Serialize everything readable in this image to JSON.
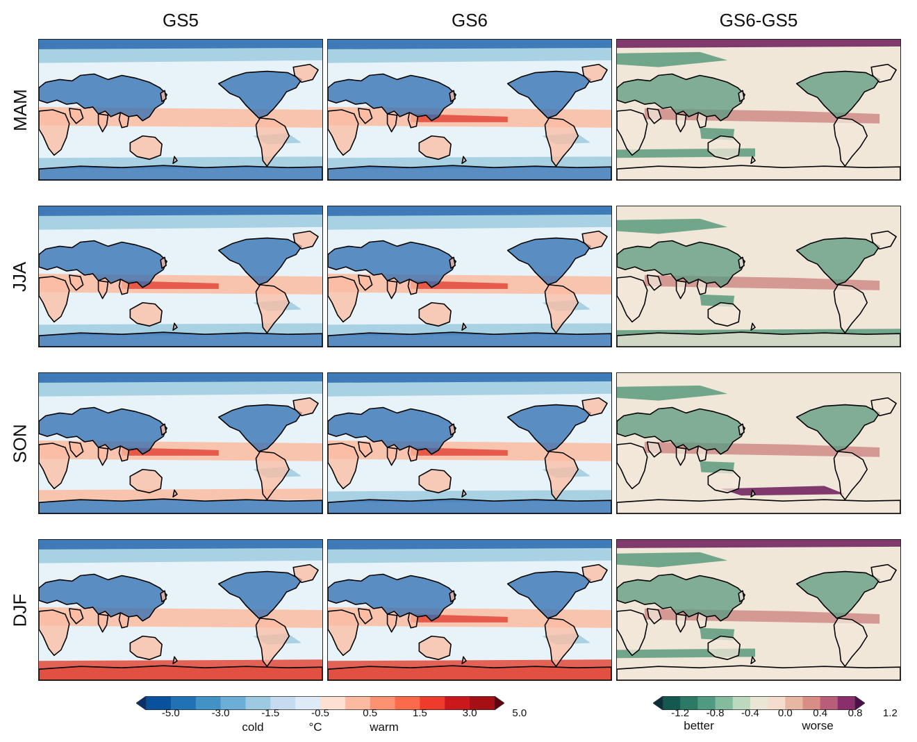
{
  "columns": [
    "GS5",
    "GS6",
    "GS6-GS5"
  ],
  "rows": [
    "MAM",
    "JJA",
    "SON",
    "DJF"
  ],
  "colorbar_bias": {
    "ticks": [
      "-5.0",
      "-3.0",
      "-1.5",
      "-0.5",
      "0.5",
      "1.5",
      "3.0",
      "5.0"
    ],
    "label_left": "cold",
    "unit": "°C",
    "label_right": "warm",
    "colors": [
      "#08306b",
      "#08519c",
      "#2171b5",
      "#4292c6",
      "#6baed6",
      "#9ecae1",
      "#c6dbef",
      "#deebf7",
      "#fee0d2",
      "#fcbba1",
      "#fc9272",
      "#fb6a4a",
      "#ef3b2c",
      "#cb181d",
      "#a50f15",
      "#67000d"
    ]
  },
  "colorbar_diff": {
    "ticks": [
      "-1.2",
      "-0.8",
      "-0.4",
      "0.0",
      "0.4",
      "0.8",
      "1.2"
    ],
    "label_left": "better",
    "label_right": "worse",
    "colors": [
      "#0b2e3a",
      "#14584f",
      "#2a7a66",
      "#4f9a80",
      "#84bb9d",
      "#bcd9c0",
      "#eae6d6",
      "#f4ddcc",
      "#e8b7a4",
      "#d88d87",
      "#b95d7a",
      "#8a2f6c",
      "#4d0f4a"
    ]
  },
  "map_colors": {
    "land": "#ffffff",
    "coast": "#000000",
    "bias_cold_strong": "#2b6cb0",
    "bias_cold": "#9ecae1",
    "bias_neutral": "#e7f3f8",
    "bias_warm": "#fcbba1",
    "bias_warm_strong": "#e0493a",
    "diff_better": "#5a9a7e",
    "diff_neutral": "#f1e7d8",
    "diff_worse": "#cf8b87",
    "diff_worse_strong": "#6b1a5a"
  }
}
